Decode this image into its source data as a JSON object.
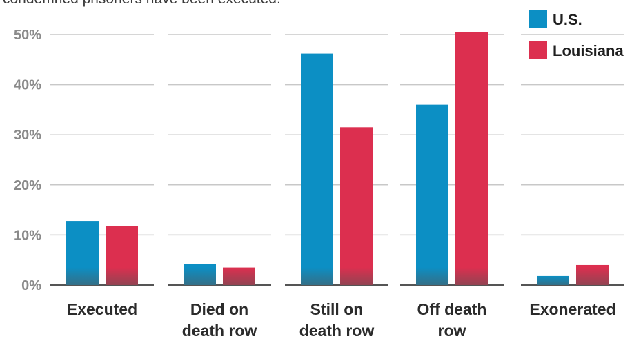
{
  "caption_partial": "condemned prisoners have been executed.",
  "chart_data": {
    "type": "bar",
    "categories": [
      [
        "Executed"
      ],
      [
        "Died on",
        "death row"
      ],
      [
        "Still on",
        "death row"
      ],
      [
        "Off death",
        "row"
      ],
      [
        "Exonerated"
      ]
    ],
    "series": [
      {
        "name": "U.S.",
        "color": "#0c8fc4",
        "values": [
          12.8,
          4.2,
          46.2,
          36.0,
          1.8
        ]
      },
      {
        "name": "Louisiana",
        "color": "#dc2f4f",
        "values": [
          11.8,
          3.5,
          31.5,
          50.5,
          4.0
        ]
      }
    ],
    "yticks": [
      "0%",
      "10%",
      "20%",
      "30%",
      "40%",
      "50%"
    ],
    "ylim": [
      0,
      50
    ],
    "ytick_step": 10,
    "grid": true,
    "legend_position": "top-right"
  }
}
